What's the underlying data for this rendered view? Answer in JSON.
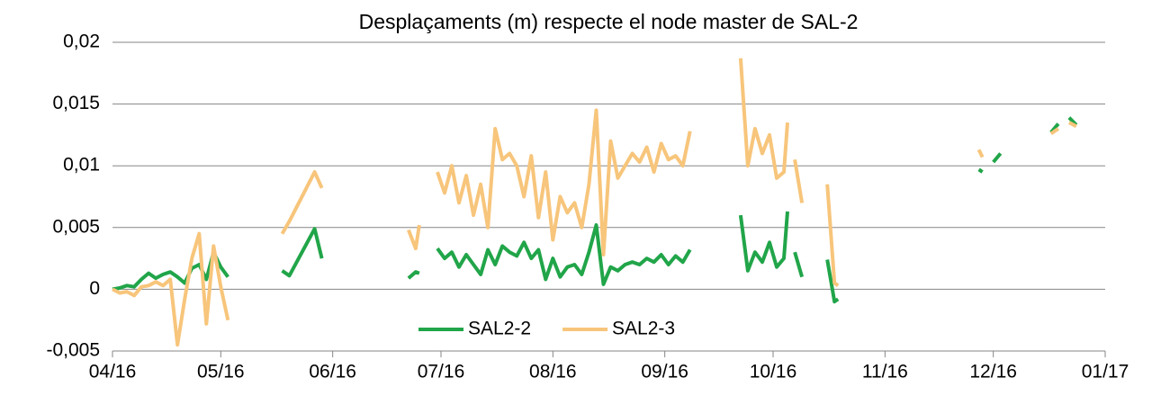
{
  "chart_data": {
    "type": "line",
    "title": "Desplaçaments (m) respecte el node master de SAL-2",
    "x": [
      0,
      2,
      4,
      6,
      8,
      10,
      12,
      14,
      16,
      18,
      20,
      22,
      24,
      26,
      28,
      30,
      32,
      40,
      47,
      49,
      56,
      58,
      70,
      82,
      84,
      85,
      88,
      90,
      92,
      94,
      96,
      98,
      100,
      102,
      104,
      106,
      108,
      110,
      112,
      114,
      116,
      118,
      120,
      122,
      124,
      126,
      128,
      130,
      132,
      134,
      136,
      138,
      140,
      142,
      144,
      146,
      148,
      150,
      152,
      154,
      156,
      158,
      160,
      167,
      174,
      176,
      178,
      180,
      182,
      184,
      186,
      187,
      188,
      189,
      191,
      195,
      198,
      200,
      201,
      220,
      240,
      241,
      242,
      244,
      246,
      253,
      260,
      262,
      263,
      265,
      267
    ],
    "series": [
      {
        "name": "SAL2-2",
        "color": "#21a549",
        "values": [
          0,
          0.0001,
          0.0003,
          0.0002,
          0.0008,
          0.0013,
          0.0009,
          0.0012,
          0.0014,
          0.001,
          0.0005,
          0.0017,
          0.002,
          0.0008,
          0.003,
          0.0018,
          0.001,
          null,
          0.0015,
          0.0011,
          0.0049,
          0.0025,
          null,
          0.0009,
          0.0014,
          0.0013,
          null,
          0.0033,
          0.0025,
          0.003,
          0.0018,
          0.0028,
          0.002,
          0.0012,
          0.0032,
          0.002,
          0.0035,
          0.003,
          0.0027,
          0.0038,
          0.0025,
          0.0032,
          0.0008,
          0.0025,
          0.001,
          0.0018,
          0.002,
          0.0012,
          0.003,
          0.0052,
          0.0004,
          0.0018,
          0.0015,
          0.002,
          0.0022,
          0.002,
          0.0025,
          0.0022,
          0.0028,
          0.002,
          0.0027,
          0.0022,
          0.0032,
          null,
          0.006,
          0.0015,
          0.003,
          0.0022,
          0.0038,
          0.0018,
          0.0025,
          0.0063,
          null,
          0.003,
          0.001,
          null,
          0.0024,
          -0.001,
          -0.0008,
          null,
          0.0097,
          0.0095,
          null,
          0.0103,
          0.011,
          null,
          0.0127,
          0.0134,
          null,
          0.0139,
          0.0133
        ]
      },
      {
        "name": "SAL2-3",
        "color": "#f7c57b",
        "values": [
          0,
          -0.0003,
          -0.0002,
          -0.0005,
          0.0002,
          0.0003,
          0.0006,
          0.0003,
          0.0008,
          -0.0045,
          -0.0008,
          0.0025,
          0.0045,
          -0.0028,
          0.0035,
          0.0002,
          -0.0025,
          null,
          0.0045,
          0.0055,
          0.0095,
          0.0082,
          null,
          0.0048,
          0.0033,
          0.0052,
          null,
          0.0095,
          0.0078,
          0.01,
          0.007,
          0.0092,
          0.006,
          0.0085,
          0.005,
          0.013,
          0.0105,
          0.011,
          0.01,
          0.0075,
          0.0108,
          0.0058,
          0.0095,
          0.004,
          0.0075,
          0.0062,
          0.007,
          0.005,
          0.0085,
          0.0145,
          0.0028,
          0.012,
          0.009,
          0.01,
          0.011,
          0.0103,
          0.0115,
          0.0095,
          0.0118,
          0.0105,
          0.0108,
          0.01,
          0.0128,
          null,
          0.0187,
          0.01,
          0.013,
          0.011,
          0.0125,
          0.009,
          0.0095,
          0.0135,
          null,
          0.0105,
          0.007,
          null,
          0.0085,
          0.0005,
          0.0003,
          null,
          0.0113,
          0.0107,
          null,
          null,
          null,
          null,
          0.0126,
          0.013,
          null,
          0.0135,
          0.0132
        ]
      }
    ],
    "xlim": [
      0,
      275
    ],
    "xticks": [
      {
        "value": 0,
        "label": "04/16"
      },
      {
        "value": 30,
        "label": "05/16"
      },
      {
        "value": 61,
        "label": "06/16"
      },
      {
        "value": 91,
        "label": "07/16"
      },
      {
        "value": 122,
        "label": "08/16"
      },
      {
        "value": 153,
        "label": "09/16"
      },
      {
        "value": 183,
        "label": "10/16"
      },
      {
        "value": 214,
        "label": "11/16"
      },
      {
        "value": 244,
        "label": "12/16"
      },
      {
        "value": 275,
        "label": "01/17"
      }
    ],
    "ylim": [
      -0.005,
      0.02
    ],
    "yticks": [
      {
        "value": -0.005,
        "label": "-0,005"
      },
      0,
      {
        "value": 0.005,
        "label": "0,005"
      },
      {
        "value": 0.01,
        "label": "0,01"
      },
      {
        "value": 0.015,
        "label": "0,015"
      },
      {
        "value": 0.02,
        "label": "0,02"
      }
    ],
    "grid": true,
    "legend": "bottom"
  }
}
